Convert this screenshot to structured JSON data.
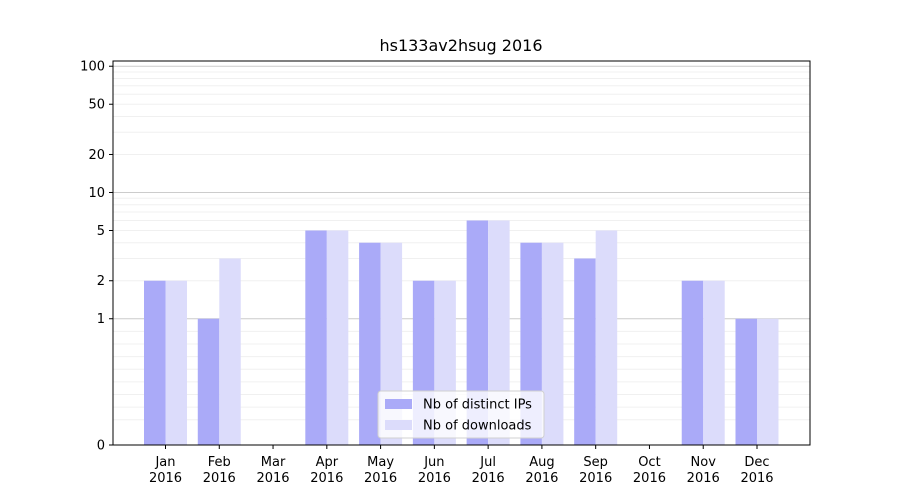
{
  "chart_data": {
    "type": "bar",
    "title": "hs133av2hsug 2016",
    "categories": [
      [
        "Jan",
        "2016"
      ],
      [
        "Feb",
        "2016"
      ],
      [
        "Mar",
        "2016"
      ],
      [
        "Apr",
        "2016"
      ],
      [
        "May",
        "2016"
      ],
      [
        "Jun",
        "2016"
      ],
      [
        "Jul",
        "2016"
      ],
      [
        "Aug",
        "2016"
      ],
      [
        "Sep",
        "2016"
      ],
      [
        "Oct",
        "2016"
      ],
      [
        "Nov",
        "2016"
      ],
      [
        "Dec",
        "2016"
      ]
    ],
    "series": [
      {
        "name": "Nb of distinct IPs",
        "color": "#aaaaf8",
        "values": [
          2,
          1,
          0,
          5,
          4,
          2,
          6,
          4,
          3,
          0,
          2,
          1
        ]
      },
      {
        "name": "Nb of downloads",
        "color": "#dcdcfb",
        "values": [
          2,
          3,
          0,
          5,
          4,
          2,
          6,
          4,
          5,
          0,
          2,
          1
        ]
      }
    ],
    "y_scale": "symlog",
    "y_ticks": [
      0,
      1,
      2,
      5,
      10,
      20,
      50,
      100
    ],
    "ylim": [
      0,
      110
    ],
    "grid": true,
    "legend_position": "lower-center"
  }
}
